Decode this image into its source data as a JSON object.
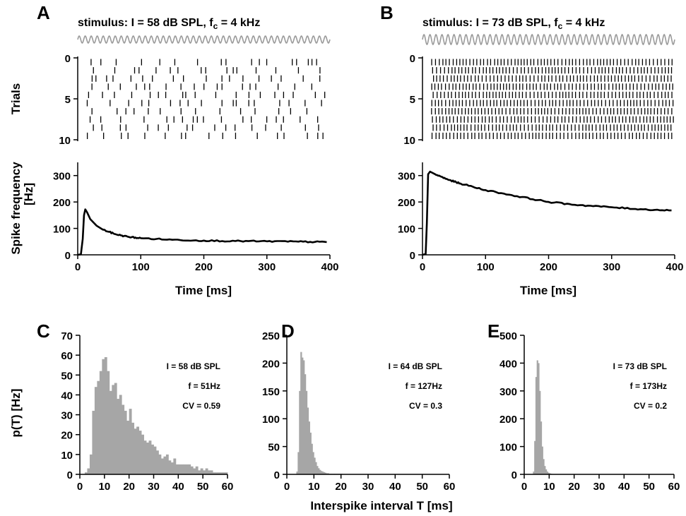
{
  "panels": {
    "A": "A",
    "B": "B",
    "C": "C",
    "D": "D",
    "E": "E"
  },
  "stimulus": {
    "A": {
      "prefix": "stimulus: I = 58 dB SPL, f",
      "sub": "c",
      "suffix": " = 4 kHz"
    },
    "B": {
      "prefix": "stimulus: I = 73 dB SPL, f",
      "sub": "c",
      "suffix": " = 4 kHz"
    }
  },
  "labels": {
    "trials": "Trials",
    "spike_freq_1": "Spike frequency",
    "spike_freq_2": "[Hz]",
    "time": "Time [ms]",
    "pT": "p(T) [Hz]",
    "isi": "Interspike interval T [ms]"
  },
  "colors": {
    "stimulus": "#9a9a9a",
    "hist": "#a6a6a6",
    "line": "#000000"
  },
  "chart_data": [
    {
      "type": "raster",
      "panel": "A",
      "ylabel": "Trials",
      "yticks": [
        "0",
        "5",
        "10"
      ],
      "ylim": [
        0,
        10
      ],
      "trials": 10,
      "spike_rate_hz": 51,
      "xlim": [
        0,
        400
      ]
    },
    {
      "type": "raster",
      "panel": "B",
      "yticks": [
        "0",
        "5",
        "10"
      ],
      "ylim": [
        0,
        10
      ],
      "trials": 10,
      "spike_rate_hz": 173,
      "xlim": [
        0,
        400
      ]
    },
    {
      "type": "line",
      "panel": "A",
      "xlabel": "Time [ms]",
      "ylabel": "Spike frequency [Hz]",
      "xlim": [
        0,
        400
      ],
      "ylim": [
        0,
        350
      ],
      "xticks": [
        "0",
        "100",
        "200",
        "300",
        "400"
      ],
      "yticks": [
        "0",
        "100",
        "200",
        "300"
      ],
      "x": [
        0,
        5,
        8,
        10,
        12,
        15,
        20,
        30,
        40,
        60,
        80,
        100,
        150,
        200,
        250,
        300,
        350,
        395
      ],
      "y": [
        0,
        2,
        60,
        150,
        172,
        160,
        135,
        110,
        95,
        78,
        68,
        63,
        57,
        54,
        52,
        51,
        50,
        48
      ]
    },
    {
      "type": "line",
      "panel": "B",
      "xlabel": "Time [ms]",
      "xlim": [
        0,
        400
      ],
      "ylim": [
        0,
        350
      ],
      "xticks": [
        "0",
        "100",
        "200",
        "300",
        "400"
      ],
      "yticks": [
        "0",
        "100",
        "200",
        "300"
      ],
      "x": [
        0,
        5,
        7,
        9,
        12,
        20,
        40,
        60,
        100,
        150,
        200,
        250,
        300,
        350,
        395
      ],
      "y": [
        0,
        3,
        120,
        305,
        315,
        305,
        285,
        270,
        245,
        222,
        200,
        188,
        180,
        172,
        168
      ],
      "title": ""
    },
    {
      "type": "bar",
      "panel": "C",
      "annotations": [
        "I = 58 dB SPL",
        "f = 51Hz",
        "CV = 0.59"
      ],
      "xlim": [
        0,
        60
      ],
      "ylim": [
        0,
        70
      ],
      "xticks": [
        "0",
        "10",
        "20",
        "30",
        "40",
        "50",
        "60"
      ],
      "yticks": [
        "0",
        "10",
        "20",
        "30",
        "40",
        "50",
        "60",
        "70"
      ],
      "ylabel": "p(T) [Hz]",
      "bin_width": 1,
      "bin_start": 2,
      "values": [
        1,
        3,
        10,
        32,
        44,
        47,
        52,
        58,
        59,
        52,
        42,
        45,
        46,
        38,
        40,
        35,
        32,
        27,
        33,
        26,
        23,
        24,
        22,
        20,
        17,
        16,
        17,
        15,
        14,
        12,
        10,
        8,
        9,
        10,
        7,
        6,
        8,
        5,
        5,
        5,
        5,
        5,
        5,
        4,
        3,
        4,
        2,
        3,
        2,
        3,
        2,
        2,
        1,
        1,
        1,
        1,
        1,
        1
      ]
    },
    {
      "type": "bar",
      "panel": "D",
      "annotations": [
        "I = 64 dB SPL",
        "f = 127Hz",
        "CV = 0.3"
      ],
      "xlim": [
        0,
        60
      ],
      "ylim": [
        0,
        250
      ],
      "xticks": [
        "0",
        "10",
        "20",
        "30",
        "40",
        "50",
        "60"
      ],
      "yticks": [
        "0",
        "50",
        "100",
        "150",
        "200",
        "250"
      ],
      "xlabel": "Interspike interval T [ms]",
      "bin_width": 0.5,
      "bin_start": 3.5,
      "values": [
        5,
        40,
        150,
        220,
        210,
        205,
        180,
        150,
        120,
        95,
        75,
        55,
        40,
        30,
        22,
        15,
        11,
        8,
        6,
        5,
        4,
        3,
        2,
        2,
        1,
        1,
        1,
        1,
        1,
        1,
        1,
        1,
        1,
        1
      ]
    },
    {
      "type": "bar",
      "panel": "E",
      "annotations": [
        "I = 73 dB SPL",
        "f = 173Hz",
        "CV = 0.2"
      ],
      "xlim": [
        0,
        60
      ],
      "ylim": [
        0,
        500
      ],
      "xticks": [
        "0",
        "10",
        "20",
        "30",
        "40",
        "50",
        "60"
      ],
      "yticks": [
        "0",
        "100",
        "200",
        "300",
        "400",
        "500"
      ],
      "bin_width": 0.5,
      "bin_start": 3.5,
      "values": [
        10,
        120,
        350,
        410,
        400,
        300,
        190,
        100,
        55,
        30,
        18,
        10,
        6,
        4,
        2,
        1,
        1
      ]
    }
  ]
}
